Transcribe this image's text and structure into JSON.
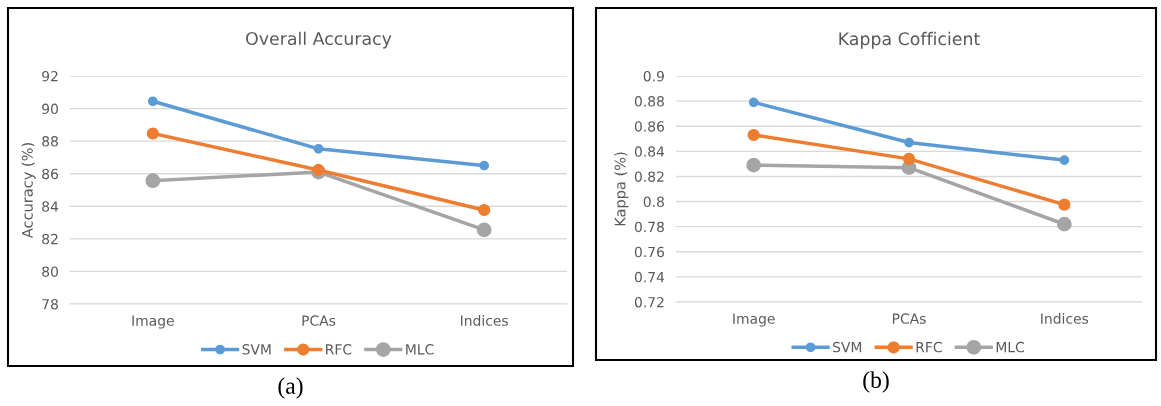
{
  "chart_data": [
    {
      "type": "line",
      "title": "Overall Accuracy",
      "ylabel": "Accuracy (%)",
      "categories": [
        "Image",
        "PCAs",
        "Indices"
      ],
      "series": [
        {
          "name": "SVM",
          "color": "#5b9bd5",
          "values": [
            90.45,
            87.53,
            86.5
          ]
        },
        {
          "name": "RFC",
          "color": "#ed7d31",
          "values": [
            88.47,
            86.23,
            83.77
          ]
        },
        {
          "name": "MLC",
          "color": "#a5a5a5",
          "values": [
            85.57,
            86.1,
            82.55
          ]
        }
      ],
      "ylim": [
        78,
        92
      ],
      "yticks": [
        78,
        80,
        82,
        84,
        86,
        88,
        90,
        92
      ],
      "grid": "y",
      "legend": "bottom",
      "marker": "circle",
      "line_style": "solid",
      "annotations": [
        "(a)"
      ]
    },
    {
      "type": "line",
      "title": "Kappa Cofficient",
      "ylabel": "Kappa (%)",
      "categories": [
        "Image",
        "PCAs",
        "Indices"
      ],
      "series": [
        {
          "name": "SVM",
          "color": "#5b9bd5",
          "values": [
            0.879,
            0.847,
            0.833
          ]
        },
        {
          "name": "RFC",
          "color": "#ed7d31",
          "values": [
            0.853,
            0.834,
            0.7975
          ]
        },
        {
          "name": "MLC",
          "color": "#a5a5a5",
          "values": [
            0.829,
            0.827,
            0.782
          ]
        }
      ],
      "ylim": [
        0.72,
        0.9
      ],
      "yticks": [
        0.72,
        0.74,
        0.76,
        0.78,
        0.8,
        0.82,
        0.84,
        0.86,
        0.88,
        0.9
      ],
      "grid": "y",
      "legend": "bottom",
      "marker": "circle",
      "line_style": "solid",
      "annotations": [
        "(b)"
      ]
    }
  ]
}
